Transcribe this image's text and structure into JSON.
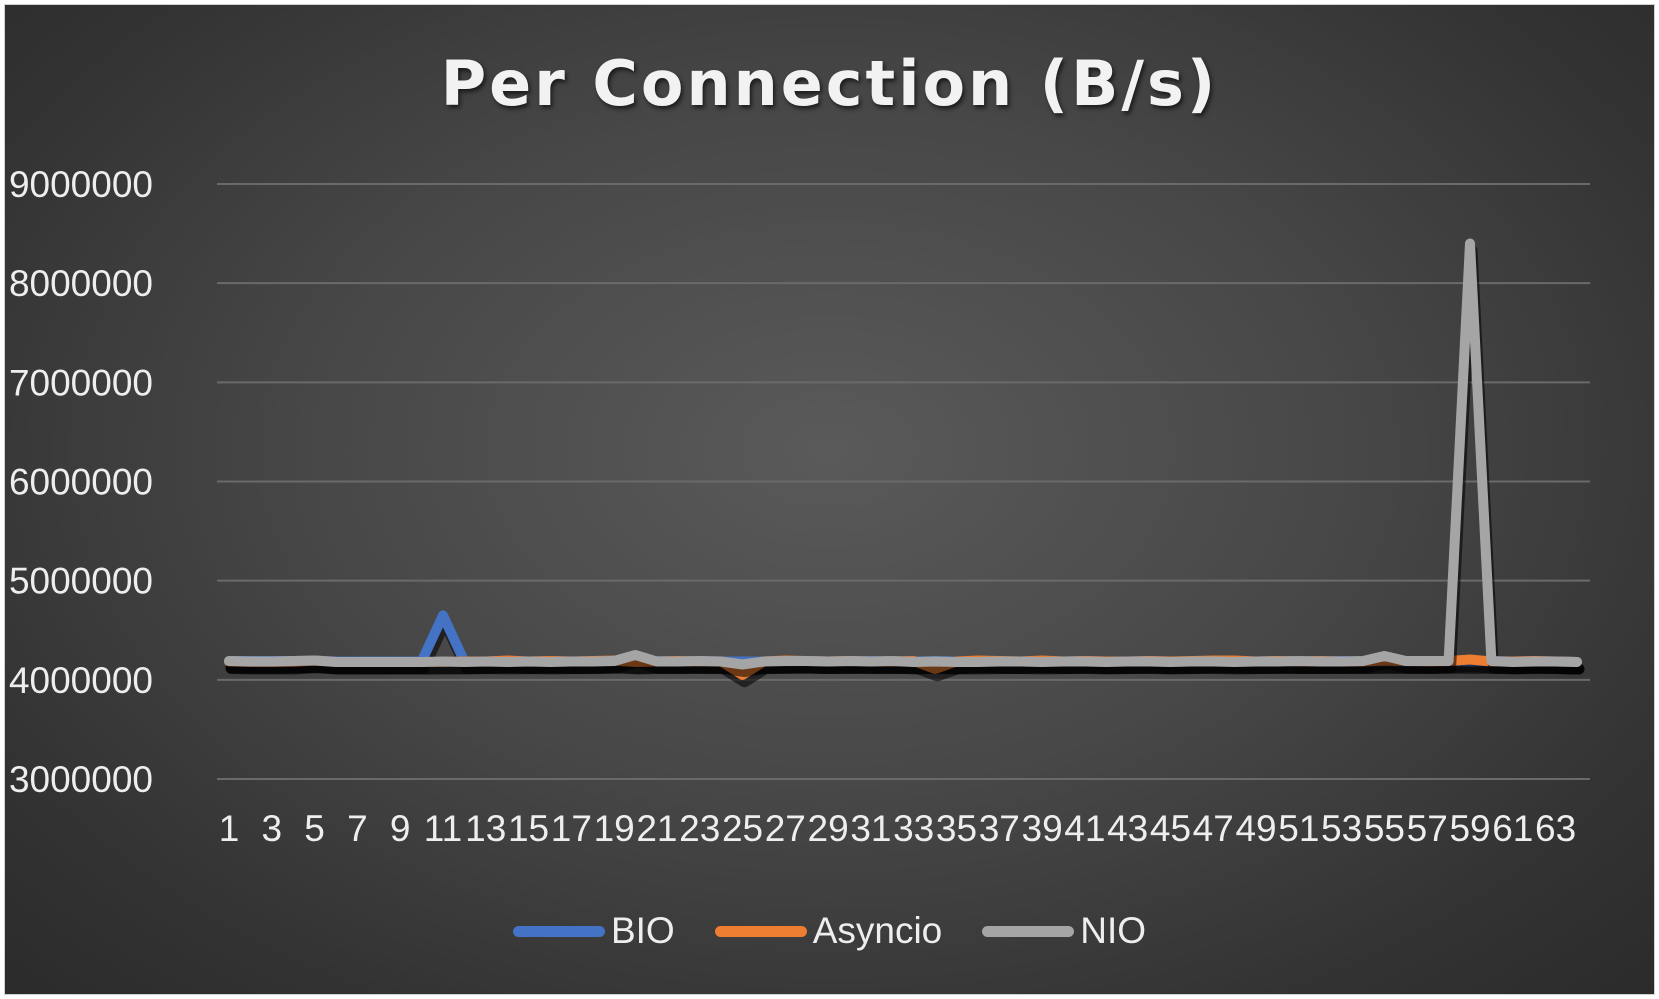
{
  "chart_data": {
    "type": "line",
    "title": "Per Connection (B/s)",
    "xlabel": "",
    "ylabel": "",
    "ylim": [
      3000000,
      9000000
    ],
    "yticks": [
      "3000000",
      "4000000",
      "5000000",
      "6000000",
      "7000000",
      "8000000",
      "9000000"
    ],
    "xtick_labels": [
      "1",
      "3",
      "5",
      "7",
      "9",
      "11",
      "13",
      "15",
      "17",
      "19",
      "21",
      "23",
      "25",
      "27",
      "29",
      "31",
      "33",
      "35",
      "37",
      "39",
      "41",
      "43",
      "45",
      "47",
      "49",
      "51",
      "53",
      "55",
      "57",
      "59",
      "61",
      "63"
    ],
    "x_count": 64,
    "legend_position": "bottom",
    "grid": true,
    "series": [
      {
        "name": "BIO",
        "color": "#4472c4",
        "values": [
          4190000,
          4190000,
          4190000,
          4190000,
          4195000,
          4185000,
          4185000,
          4185000,
          4185000,
          4185000,
          4650000,
          4185000,
          4185000,
          4190000,
          4185000,
          4190000,
          4185000,
          4185000,
          4190000,
          4185000,
          4190000,
          4185000,
          4190000,
          4185000,
          4185000,
          4185000,
          4185000,
          4190000,
          4185000,
          4185000,
          4190000,
          4185000,
          4185000,
          4190000,
          4185000,
          4190000,
          4185000,
          4185000,
          4190000,
          4185000,
          4190000,
          4185000,
          4185000,
          4190000,
          4185000,
          4185000,
          4190000,
          4185000,
          4185000,
          4190000,
          4185000,
          4185000,
          4190000,
          4185000,
          4185000,
          4185000,
          4185000,
          4190000,
          4185000,
          4190000,
          4185000,
          4190000,
          4185000,
          4180000
        ]
      },
      {
        "name": "Asyncio",
        "color": "#ed7d31",
        "values": [
          4185000,
          4180000,
          4180000,
          4180000,
          4195000,
          4180000,
          4180000,
          4180000,
          4180000,
          4180000,
          4180000,
          4185000,
          4185000,
          4195000,
          4185000,
          4190000,
          4185000,
          4190000,
          4195000,
          4180000,
          4185000,
          4190000,
          4185000,
          4185000,
          4050000,
          4185000,
          4195000,
          4190000,
          4185000,
          4190000,
          4185000,
          4185000,
          4190000,
          4110000,
          4185000,
          4195000,
          4190000,
          4185000,
          4195000,
          4185000,
          4190000,
          4185000,
          4185000,
          4190000,
          4185000,
          4190000,
          4195000,
          4195000,
          4185000,
          4190000,
          4185000,
          4190000,
          4185000,
          4185000,
          4195000,
          4190000,
          4185000,
          4190000,
          4205000,
          4185000,
          4185000,
          4190000,
          4185000,
          4180000
        ]
      },
      {
        "name": "NIO",
        "color": "#a5a5a5",
        "values": [
          4190000,
          4185000,
          4185000,
          4190000,
          4195000,
          4180000,
          4180000,
          4180000,
          4180000,
          4180000,
          4185000,
          4180000,
          4185000,
          4180000,
          4185000,
          4180000,
          4185000,
          4185000,
          4190000,
          4250000,
          4185000,
          4185000,
          4190000,
          4185000,
          4155000,
          4185000,
          4190000,
          4190000,
          4185000,
          4190000,
          4185000,
          4190000,
          4180000,
          4185000,
          4180000,
          4180000,
          4185000,
          4185000,
          4180000,
          4185000,
          4185000,
          4180000,
          4185000,
          4185000,
          4180000,
          4185000,
          4185000,
          4180000,
          4185000,
          4185000,
          4190000,
          4185000,
          4185000,
          4190000,
          4240000,
          4190000,
          4190000,
          4190000,
          8400000,
          4190000,
          4180000,
          4185000,
          4185000,
          4180000
        ]
      }
    ]
  }
}
